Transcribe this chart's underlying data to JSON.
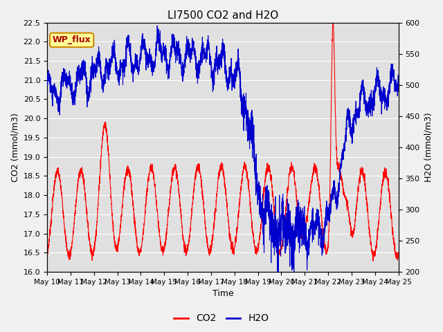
{
  "title": "LI7500 CO2 and H2O",
  "xlabel": "Time",
  "ylabel_left": "CO2 (mmol/m3)",
  "ylabel_right": "H2O (mmol/m3)",
  "ylim_left": [
    16.0,
    22.5
  ],
  "ylim_right": [
    200,
    600
  ],
  "co2_color": "#ff0000",
  "h2o_color": "#0000cc",
  "fig_facecolor": "#f0f0f0",
  "plot_bg_color": "#e0e0e0",
  "annotation_text": "WP_flux",
  "annotation_facecolor": "#ffff99",
  "annotation_edgecolor": "#cc8800",
  "annotation_textcolor": "#aa0000",
  "legend_co2": "CO2",
  "legend_h2o": "H2O",
  "title_fontsize": 11,
  "axis_fontsize": 9,
  "tick_fontsize": 8
}
